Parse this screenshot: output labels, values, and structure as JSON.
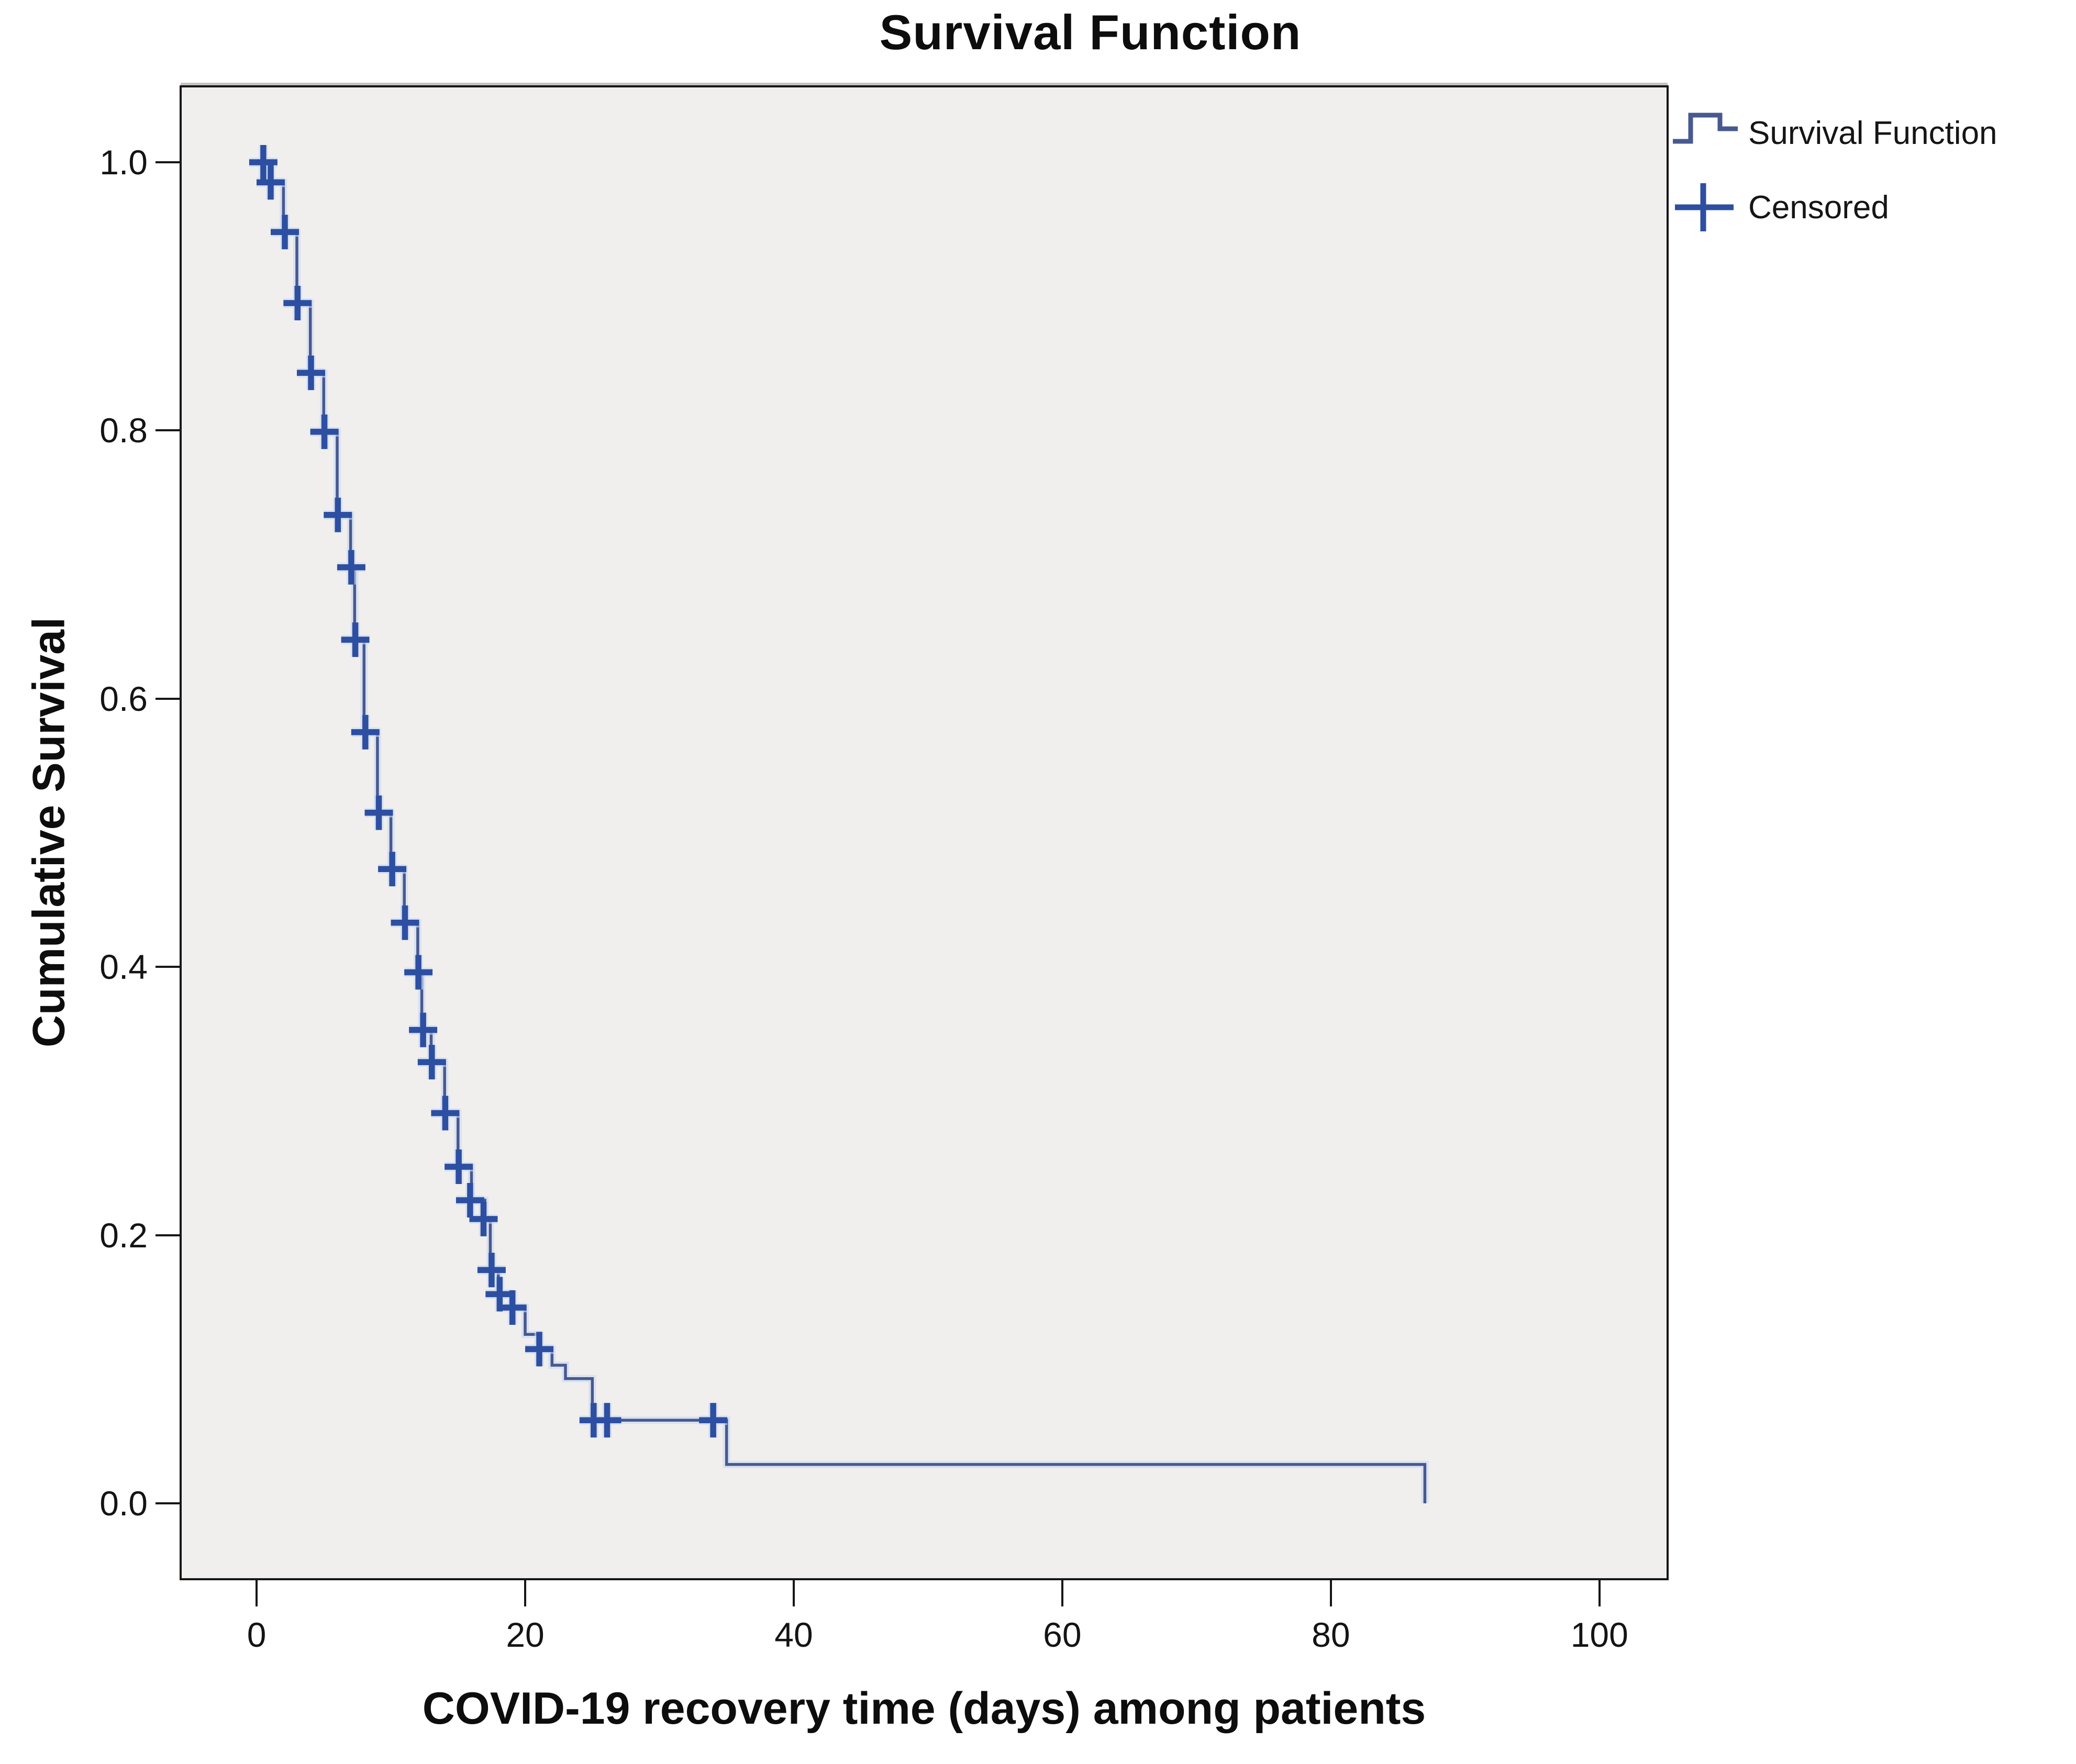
{
  "chart_data": {
    "type": "line",
    "subtype": "kaplan-meier-step-function",
    "title": "Survival Function",
    "xlabel": "COVID-19 recovery time (days) among patients",
    "ylabel": "Cumulative Survival",
    "grid": "off",
    "plot_background": "#f0efed",
    "line_color": "#47598f",
    "censor_color": "#2d4fa2",
    "x_ticks": [
      {
        "value": 0,
        "label": "0"
      },
      {
        "value": 20,
        "label": "20"
      },
      {
        "value": 40,
        "label": "40"
      },
      {
        "value": 60,
        "label": "60"
      },
      {
        "value": 80,
        "label": "80"
      },
      {
        "value": 100,
        "label": "100"
      }
    ],
    "y_ticks": [
      {
        "value": 0.0,
        "label": "0.0"
      },
      {
        "value": 0.2,
        "label": "0.2"
      },
      {
        "value": 0.4,
        "label": "0.4"
      },
      {
        "value": 0.6,
        "label": "0.6"
      },
      {
        "value": 0.8,
        "label": "0.8"
      },
      {
        "value": 1.0,
        "label": "1.0"
      }
    ],
    "x_extent": [
      -5.58,
      105.0
    ],
    "y_extent": [
      -0.0558,
      1.0558
    ],
    "legend": {
      "position": "top-right-outside",
      "entries": [
        {
          "label": "Survival Function",
          "symbol": "step-line"
        },
        {
          "label": "Censored",
          "symbol": "plus"
        }
      ]
    },
    "survival_steps": [
      {
        "t": 0,
        "s": 1.0
      },
      {
        "t": 1,
        "s": 0.985
      },
      {
        "t": 2,
        "s": 0.948
      },
      {
        "t": 3,
        "s": 0.895
      },
      {
        "t": 4,
        "s": 0.843
      },
      {
        "t": 5,
        "s": 0.799
      },
      {
        "t": 6,
        "s": 0.737
      },
      {
        "t": 7,
        "s": 0.698
      },
      {
        "t": 7.3,
        "s": 0.644
      },
      {
        "t": 8,
        "s": 0.575
      },
      {
        "t": 9,
        "s": 0.515
      },
      {
        "t": 10,
        "s": 0.473
      },
      {
        "t": 11,
        "s": 0.433
      },
      {
        "t": 12,
        "s": 0.396
      },
      {
        "t": 12.3,
        "s": 0.353
      },
      {
        "t": 13,
        "s": 0.329
      },
      {
        "t": 14,
        "s": 0.291
      },
      {
        "t": 15,
        "s": 0.251
      },
      {
        "t": 16,
        "s": 0.226
      },
      {
        "t": 17,
        "s": 0.212
      },
      {
        "t": 17.4,
        "s": 0.174
      },
      {
        "t": 18,
        "s": 0.156
      },
      {
        "t": 19,
        "s": 0.146
      },
      {
        "t": 20,
        "s": 0.126
      },
      {
        "t": 21,
        "s": 0.115
      },
      {
        "t": 22,
        "s": 0.103
      },
      {
        "t": 23,
        "s": 0.093
      },
      {
        "t": 25,
        "s": 0.062
      },
      {
        "t": 35,
        "s": 0.029
      },
      {
        "t": 87,
        "s": 0.0
      }
    ],
    "censored_points": [
      {
        "t": 0.5,
        "s": 1.0
      },
      {
        "t": 1.05,
        "s": 0.985
      },
      {
        "t": 2.1,
        "s": 0.948
      },
      {
        "t": 3.05,
        "s": 0.895
      },
      {
        "t": 4.05,
        "s": 0.843
      },
      {
        "t": 5.05,
        "s": 0.799
      },
      {
        "t": 6.05,
        "s": 0.737
      },
      {
        "t": 7.05,
        "s": 0.698
      },
      {
        "t": 7.35,
        "s": 0.644
      },
      {
        "t": 8.1,
        "s": 0.575
      },
      {
        "t": 9.1,
        "s": 0.515
      },
      {
        "t": 10.1,
        "s": 0.473
      },
      {
        "t": 11.05,
        "s": 0.433
      },
      {
        "t": 12.05,
        "s": 0.396
      },
      {
        "t": 12.4,
        "s": 0.353
      },
      {
        "t": 13.05,
        "s": 0.329
      },
      {
        "t": 14.05,
        "s": 0.291
      },
      {
        "t": 15.05,
        "s": 0.251
      },
      {
        "t": 15.9,
        "s": 0.226
      },
      {
        "t": 16.9,
        "s": 0.212
      },
      {
        "t": 17.5,
        "s": 0.174
      },
      {
        "t": 18.1,
        "s": 0.156
      },
      {
        "t": 19.05,
        "s": 0.146
      },
      {
        "t": 21.05,
        "s": 0.115
      },
      {
        "t": 25.1,
        "s": 0.062
      },
      {
        "t": 26.1,
        "s": 0.062
      },
      {
        "t": 34.0,
        "s": 0.062
      }
    ]
  }
}
